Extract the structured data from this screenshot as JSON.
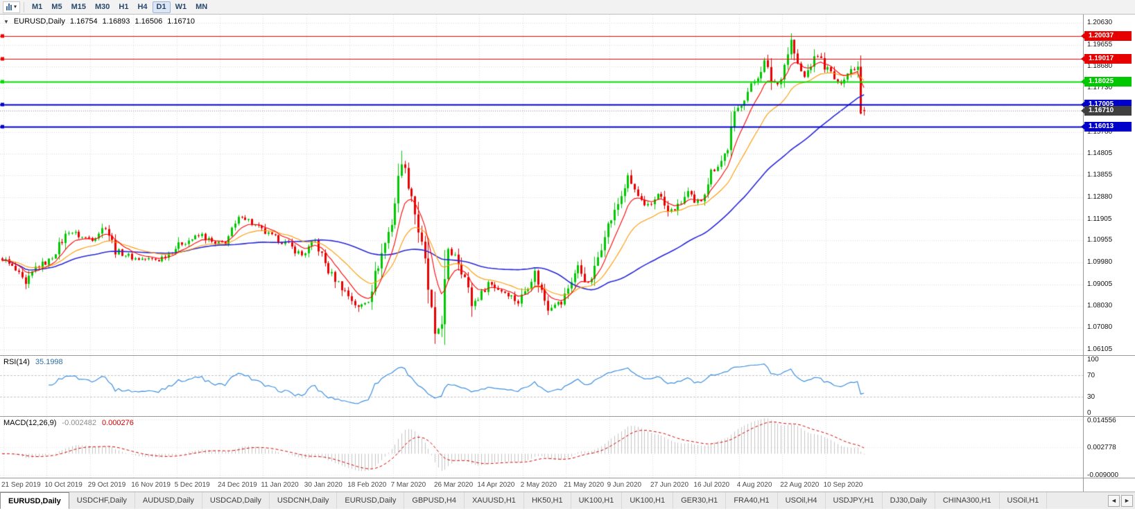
{
  "toolbar": {
    "timeframes": [
      "M1",
      "M5",
      "M15",
      "M30",
      "H1",
      "H4",
      "D1",
      "W1",
      "MN"
    ],
    "active_timeframe": "D1",
    "caret_icon": "▾"
  },
  "main_chart": {
    "header": {
      "collapse_icon": "▼",
      "symbol": "EURUSD,Daily",
      "open": "1.16754",
      "high": "1.16893",
      "low": "1.16506",
      "close": "1.16710"
    },
    "price_axis_labels": [
      "1.20630",
      "1.19655",
      "1.18680",
      "1.17730",
      "1.16755",
      "1.15780",
      "1.14805",
      "1.13855",
      "1.12880",
      "1.11905",
      "1.10955",
      "1.09980",
      "1.09005",
      "1.08030",
      "1.07080",
      "1.06105"
    ],
    "level_tags": [
      {
        "label": "1.20037",
        "price": 1.20037,
        "color": "#e60000",
        "type": "resistance"
      },
      {
        "label": "1.19017",
        "price": 1.19017,
        "color": "#e60000",
        "type": "resistance"
      },
      {
        "label": "1.18025",
        "price": 1.18025,
        "color": "#00c800",
        "type": "level"
      },
      {
        "label": "1.17005",
        "price": 1.17005,
        "color": "#0000c8",
        "type": "support"
      },
      {
        "label": "1.16710",
        "price": 1.1671,
        "color": "#3f3f3f",
        "type": "current-price"
      },
      {
        "label": "1.16013",
        "price": 1.16013,
        "color": "#0000c8",
        "type": "support"
      }
    ],
    "date_axis_labels": [
      "21 Sep 2019",
      "10 Oct 2019",
      "29 Oct 2019",
      "16 Nov 2019",
      "5 Dec 2019",
      "24 Dec 2019",
      "11 Jan 2020",
      "30 Jan 2020",
      "18 Feb 2020",
      "7 Mar 2020",
      "26 Mar 2020",
      "14 Apr 2020",
      "2 May 2020",
      "21 May 2020",
      "9 Jun 2020",
      "27 Jun 2020",
      "16 Jul 2020",
      "4 Aug 2020",
      "22 Aug 2020",
      "10 Sep 2020"
    ]
  },
  "rsi_panel": {
    "name": "RSI(14)",
    "value": "35.1998",
    "axis_labels": [
      "100",
      "70",
      "30",
      "0"
    ],
    "level_lines": [
      70,
      30
    ]
  },
  "macd_panel": {
    "name": "MACD(12,26,9)",
    "main_value": "-0.002482",
    "signal_value": "0.000276",
    "axis_labels": [
      "0.014556",
      "0.002778",
      "-0.009000"
    ]
  },
  "tab_bar": {
    "active_index": 0,
    "tabs": [
      "EURUSD,Daily",
      "USDCHF,Daily",
      "AUDUSD,Daily",
      "USDCAD,Daily",
      "USDCNH,Daily",
      "EURUSD,Daily",
      "GBPUSD,H4",
      "XAUUSD,H1",
      "HK50,H1",
      "UK100,H1",
      "UK100,H1",
      "GER30,H1",
      "FRA40,H1",
      "USOil,H4",
      "USDJPY,H1",
      "DJ30,Daily",
      "CHINA300,H1",
      "USOil,H1"
    ],
    "scroll_icons": [
      "◄",
      "►"
    ]
  },
  "colors": {
    "up_candle": "#00c800",
    "down_candle": "#ea0000",
    "ma_fast": "#ff0000",
    "ma_mid": "#ff9900",
    "ma_slow": "#2727d8",
    "grid": "#dcdcdc",
    "rsi_line": "#3b8ede",
    "macd_histogram": "#c3c3c3",
    "macd_signal": "#d40000",
    "current_price_line": "#a8a8a8",
    "panel_border": "#989898"
  },
  "chart_data": {
    "type": "candlestick",
    "symbol": "EURUSD",
    "timeframe": "Daily",
    "scale_top": 1.2063,
    "scale_bottom": 1.06105,
    "price_axis_ticks": [
      1.2063,
      1.19655,
      1.1868,
      1.1773,
      1.16755,
      1.1578,
      1.14805,
      1.13855,
      1.1288,
      1.11905,
      1.10955,
      1.0998,
      1.09005,
      1.0803,
      1.0708,
      1.06105
    ],
    "candle_count": 260,
    "close_path_anchors": [
      [
        0,
        1.1017
      ],
      [
        4,
        1.096
      ],
      [
        7,
        1.0895
      ],
      [
        10,
        1.0975
      ],
      [
        14,
        1.1005
      ],
      [
        20,
        1.114
      ],
      [
        24,
        1.111
      ],
      [
        27,
        1.1105
      ],
      [
        31,
        1.116
      ],
      [
        34,
        1.105
      ],
      [
        40,
        1.1015
      ],
      [
        47,
        1.101
      ],
      [
        54,
        1.1085
      ],
      [
        60,
        1.112
      ],
      [
        64,
        1.1075
      ],
      [
        67,
        1.109
      ],
      [
        72,
        1.121
      ],
      [
        76,
        1.116
      ],
      [
        80,
        1.112
      ],
      [
        85,
        1.1085
      ],
      [
        90,
        1.103
      ],
      [
        94,
        1.1094
      ],
      [
        98,
        1.096
      ],
      [
        103,
        1.087
      ],
      [
        107,
        1.0795
      ],
      [
        110,
        1.084
      ],
      [
        113,
        1.099
      ],
      [
        117,
        1.118
      ],
      [
        120,
        1.145
      ],
      [
        123,
        1.13
      ],
      [
        125,
        1.114
      ],
      [
        127,
        1.099
      ],
      [
        130,
        1.066
      ],
      [
        132,
        1.075
      ],
      [
        134,
        1.103
      ],
      [
        136,
        1.104
      ],
      [
        139,
        1.093
      ],
      [
        141,
        1.081
      ],
      [
        144,
        1.086
      ],
      [
        146,
        1.091
      ],
      [
        149,
        1.088
      ],
      [
        152,
        1.086
      ],
      [
        155,
        1.082
      ],
      [
        158,
        1.09
      ],
      [
        160,
        1.0955
      ],
      [
        162,
        1.087
      ],
      [
        164,
        1.0795
      ],
      [
        166,
        1.082
      ],
      [
        168,
        1.0815
      ],
      [
        171,
        1.092
      ],
      [
        173,
        1.098
      ],
      [
        176,
        1.09
      ],
      [
        178,
        1.0965
      ],
      [
        181,
        1.1135
      ],
      [
        184,
        1.122
      ],
      [
        188,
        1.1375
      ],
      [
        191,
        1.129
      ],
      [
        193,
        1.124
      ],
      [
        195,
        1.1255
      ],
      [
        197,
        1.131
      ],
      [
        200,
        1.122
      ],
      [
        203,
        1.1245
      ],
      [
        206,
        1.131
      ],
      [
        208,
        1.1255
      ],
      [
        210,
        1.128
      ],
      [
        213,
        1.14
      ],
      [
        216,
        1.145
      ],
      [
        218,
        1.151
      ],
      [
        220,
        1.165
      ],
      [
        222,
        1.171
      ],
      [
        225,
        1.178
      ],
      [
        227,
        1.183
      ],
      [
        229,
        1.189
      ],
      [
        231,
        1.181
      ],
      [
        233,
        1.179
      ],
      [
        235,
        1.188
      ],
      [
        237,
        1.1985
      ],
      [
        239,
        1.187
      ],
      [
        241,
        1.182
      ],
      [
        243,
        1.188
      ],
      [
        245,
        1.192
      ],
      [
        247,
        1.187
      ],
      [
        249,
        1.184
      ],
      [
        251,
        1.179
      ],
      [
        253,
        1.1825
      ],
      [
        255,
        1.1855
      ],
      [
        257,
        1.1875
      ],
      [
        258,
        1.169
      ],
      [
        259,
        1.1671
      ]
    ],
    "wick_overrides": [
      {
        "i": 7,
        "low": 1.0879
      },
      {
        "i": 107,
        "low": 1.0778
      },
      {
        "i": 120,
        "high": 1.1495
      },
      {
        "i": 130,
        "low": 1.0636
      },
      {
        "i": 237,
        "high": 1.2011
      }
    ],
    "last_candle": {
      "open": 1.16754,
      "high": 1.16893,
      "low": 1.16506,
      "close": 1.1671
    },
    "moving_averages": [
      {
        "type": "ema",
        "period": 8,
        "color": "#ff0000",
        "width": 1.1
      },
      {
        "type": "ema",
        "period": 20,
        "color": "#ff9900",
        "width": 1.1
      },
      {
        "type": "sma",
        "period": 50,
        "color": "#2727d8",
        "width": 1.6
      }
    ],
    "horizontal_lines": [
      {
        "price": 1.20037,
        "color": "#f00000",
        "width": 1.2
      },
      {
        "price": 1.19017,
        "color": "#f00000",
        "width": 1.2
      },
      {
        "price": 1.18025,
        "color": "#00dd00",
        "width": 2
      },
      {
        "price": 1.17005,
        "color": "#0000c8",
        "width": 2
      },
      {
        "price": 1.16013,
        "color": "#0000c8",
        "width": 2
      }
    ],
    "current_price": 1.1671,
    "indicators": [
      {
        "name": "RSI",
        "period": 14,
        "value": 35.1998,
        "scale": [
          0,
          100
        ],
        "levels": [
          70,
          30
        ]
      },
      {
        "name": "MACD",
        "params": [
          12,
          26,
          9
        ],
        "main": -0.002482,
        "signal": 0.000276,
        "scale_max": 0.014556,
        "scale_mid": 0.002778,
        "scale_min": -0.009
      }
    ]
  }
}
